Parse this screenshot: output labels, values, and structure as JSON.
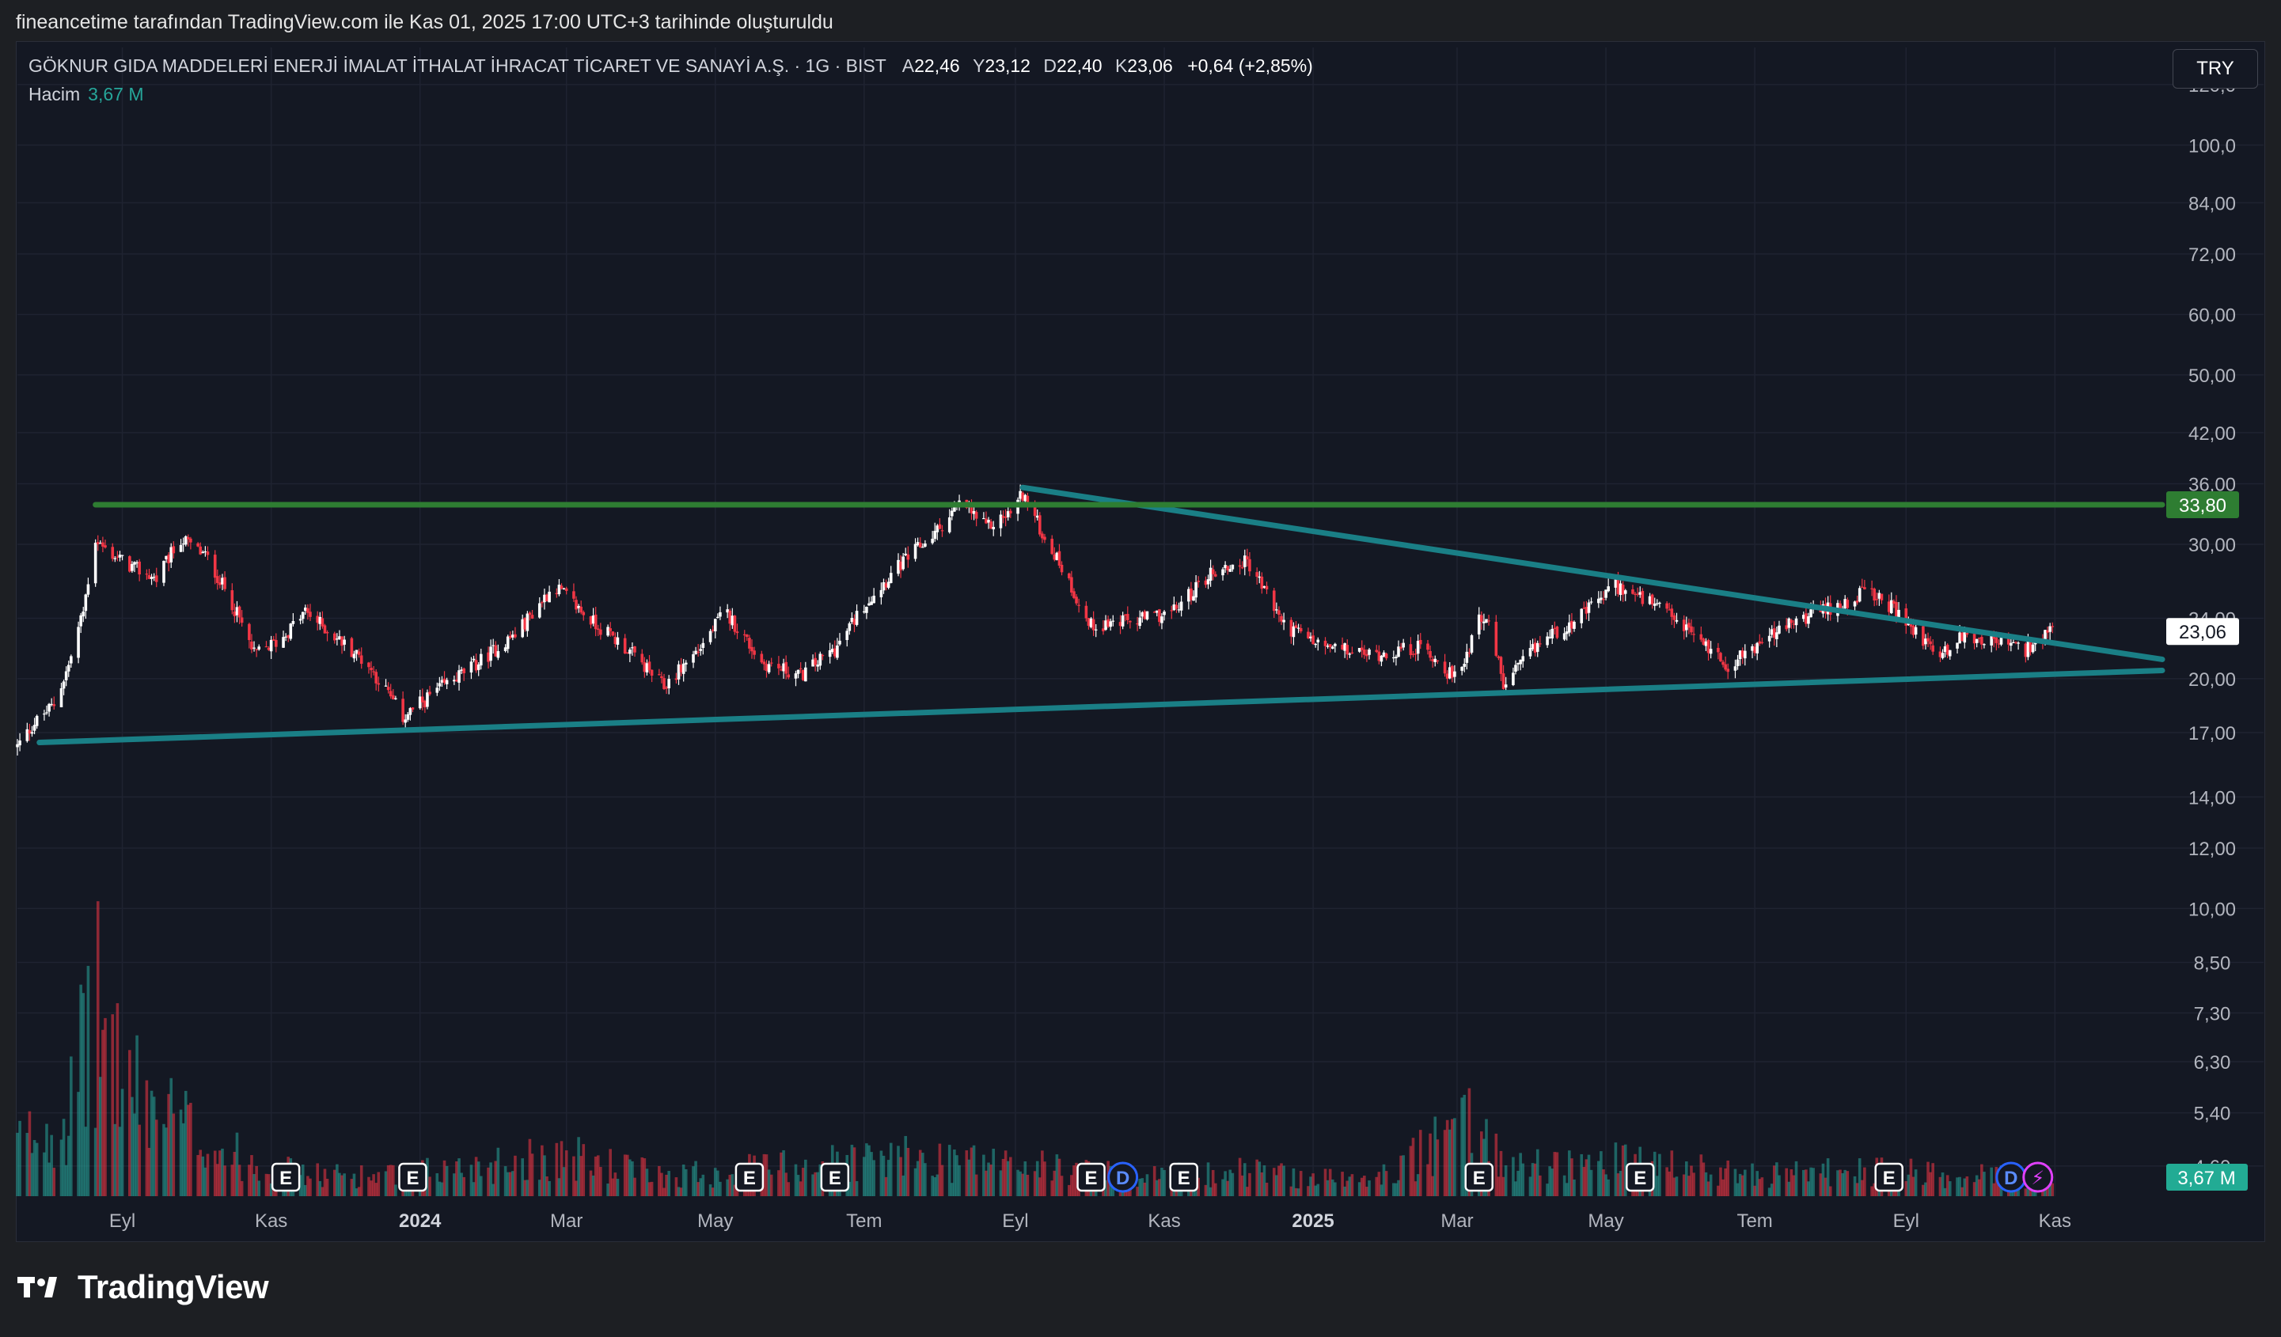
{
  "header": {
    "caption": "fineancetime tarafından TradingView.com ile Kas 01, 2025 17:00 UTC+3 tarihinde oluşturuldu"
  },
  "legend": {
    "symbol": "GÖKNUR GIDA MADDELERİ ENERJİ İMALAT İTHALAT İHRACAT TİCARET VE SANAYİ A.Ş. · 1G · BIST",
    "open_label": "A",
    "open": "22,46",
    "high_label": "Y",
    "high": "23,12",
    "low_label": "D",
    "low": "22,40",
    "close_label": "K",
    "close": "23,06",
    "change": "+0,64 (+2,85%)",
    "volume_name": "Hacim",
    "volume_value": "3,67 M"
  },
  "currency": "TRY",
  "brand": "TradingView",
  "colors": {
    "background": "#141823",
    "up": "#ffffff",
    "down": "#f23645",
    "volume_up": "#26a69a",
    "volume_down": "#f23645",
    "trendline": "#1a7f86",
    "resistance": "#2e7d32",
    "price_tag": "#ffffff",
    "volume_tag": "#22ab94"
  },
  "chart_data": {
    "type": "candlestick",
    "y_scale": "log",
    "ylim": [
      4.2,
      122
    ],
    "y_ticks": [
      {
        "value": 120,
        "label": "120,0"
      },
      {
        "value": 100,
        "label": "100,0"
      },
      {
        "value": 84,
        "label": "84,00"
      },
      {
        "value": 72,
        "label": "72,00"
      },
      {
        "value": 60,
        "label": "60,00"
      },
      {
        "value": 50,
        "label": "50,00"
      },
      {
        "value": 42,
        "label": "42,00"
      },
      {
        "value": 36,
        "label": "36,00"
      },
      {
        "value": 30,
        "label": "30,00"
      },
      {
        "value": 24,
        "label": "24,00"
      },
      {
        "value": 20,
        "label": "20,00"
      },
      {
        "value": 17,
        "label": "17,00"
      },
      {
        "value": 14,
        "label": "14,00"
      },
      {
        "value": 12,
        "label": "12,00"
      },
      {
        "value": 10,
        "label": "10,00"
      },
      {
        "value": 8.5,
        "label": "8,50"
      },
      {
        "value": 7.3,
        "label": "7,30"
      },
      {
        "value": 6.3,
        "label": "6,30"
      },
      {
        "value": 5.4,
        "label": "5,40"
      },
      {
        "value": 4.6,
        "label": "4,60"
      }
    ],
    "x_range": [
      "2023-07-20",
      "2025-12-15"
    ],
    "x_ticks": [
      {
        "date": "2023-09-01",
        "label": "Eyl",
        "bold": false
      },
      {
        "date": "2023-11-01",
        "label": "Kas",
        "bold": false
      },
      {
        "date": "2024-01-01",
        "label": "2024",
        "bold": true
      },
      {
        "date": "2024-03-01",
        "label": "Mar",
        "bold": false
      },
      {
        "date": "2024-05-01",
        "label": "May",
        "bold": false
      },
      {
        "date": "2024-07-01",
        "label": "Tem",
        "bold": false
      },
      {
        "date": "2024-09-01",
        "label": "Eyl",
        "bold": false
      },
      {
        "date": "2024-11-01",
        "label": "Kas",
        "bold": false
      },
      {
        "date": "2025-01-01",
        "label": "2025",
        "bold": true
      },
      {
        "date": "2025-03-01",
        "label": "Mar",
        "bold": false
      },
      {
        "date": "2025-05-01",
        "label": "May",
        "bold": false
      },
      {
        "date": "2025-07-01",
        "label": "Tem",
        "bold": false
      },
      {
        "date": "2025-09-01",
        "label": "Eyl",
        "bold": false
      },
      {
        "date": "2025-11-01",
        "label": "Kas",
        "bold": false
      }
    ],
    "price_path": [
      [
        "2023-07-20",
        16.3
      ],
      [
        "2023-07-27",
        17.5
      ],
      [
        "2023-08-04",
        18.5
      ],
      [
        "2023-08-10",
        20.8
      ],
      [
        "2023-08-16",
        24.5
      ],
      [
        "2023-08-21",
        30.5
      ],
      [
        "2023-08-25",
        29.5
      ],
      [
        "2023-09-05",
        28.0
      ],
      [
        "2023-09-15",
        27.0
      ],
      [
        "2023-09-25",
        30.5
      ],
      [
        "2023-10-05",
        29.0
      ],
      [
        "2023-10-15",
        25.5
      ],
      [
        "2023-10-25",
        21.5
      ],
      [
        "2023-11-05",
        22.5
      ],
      [
        "2023-11-15",
        24.5
      ],
      [
        "2023-11-25",
        23.0
      ],
      [
        "2023-12-10",
        21.0
      ],
      [
        "2023-12-25",
        17.8
      ],
      [
        "2024-01-10",
        19.5
      ],
      [
        "2024-01-25",
        21.0
      ],
      [
        "2024-02-10",
        23.0
      ],
      [
        "2024-02-25",
        26.5
      ],
      [
        "2024-03-10",
        24.0
      ],
      [
        "2024-03-25",
        22.0
      ],
      [
        "2024-04-10",
        19.5
      ],
      [
        "2024-04-25",
        22.0
      ],
      [
        "2024-05-05",
        24.5
      ],
      [
        "2024-05-20",
        21.0
      ],
      [
        "2024-06-05",
        20.2
      ],
      [
        "2024-06-20",
        22.0
      ],
      [
        "2024-07-01",
        25.0
      ],
      [
        "2024-07-15",
        28.0
      ],
      [
        "2024-07-30",
        31.0
      ],
      [
        "2024-08-10",
        34.0
      ],
      [
        "2024-08-20",
        31.5
      ],
      [
        "2024-08-30",
        33.0
      ],
      [
        "2024-09-04",
        35.0
      ],
      [
        "2024-09-12",
        31.0
      ],
      [
        "2024-09-20",
        28.0
      ],
      [
        "2024-10-01",
        23.5
      ],
      [
        "2024-10-20",
        23.8
      ],
      [
        "2024-11-05",
        24.5
      ],
      [
        "2024-11-20",
        27.5
      ],
      [
        "2024-12-05",
        28.5
      ],
      [
        "2024-12-20",
        23.5
      ],
      [
        "2025-01-05",
        22.0
      ],
      [
        "2025-01-25",
        21.5
      ],
      [
        "2025-02-15",
        22.0
      ],
      [
        "2025-02-28",
        20.0
      ],
      [
        "2025-03-05",
        21.5
      ],
      [
        "2025-03-10",
        24.5
      ],
      [
        "2025-03-15",
        23.0
      ],
      [
        "2025-03-20",
        19.5
      ],
      [
        "2025-04-05",
        22.5
      ],
      [
        "2025-04-20",
        24.0
      ],
      [
        "2025-05-05",
        26.5
      ],
      [
        "2025-05-20",
        25.0
      ],
      [
        "2025-06-05",
        23.0
      ],
      [
        "2025-06-20",
        20.8
      ],
      [
        "2025-07-05",
        22.5
      ],
      [
        "2025-07-20",
        24.0
      ],
      [
        "2025-08-05",
        25.0
      ],
      [
        "2025-08-15",
        26.0
      ],
      [
        "2025-08-25",
        25.0
      ],
      [
        "2025-09-05",
        23.0
      ],
      [
        "2025-09-15",
        21.5
      ],
      [
        "2025-09-25",
        22.8
      ],
      [
        "2025-10-10",
        22.3
      ],
      [
        "2025-10-20",
        21.8
      ],
      [
        "2025-10-31",
        23.06
      ]
    ],
    "volume_ylim": [
      0,
      10
    ],
    "volume_unit": "M",
    "volume_profile": [
      [
        "2023-07-20",
        2.5
      ],
      [
        "2023-08-10",
        4.0
      ],
      [
        "2023-08-21",
        9.0
      ],
      [
        "2023-09-05",
        5.0
      ],
      [
        "2023-09-25",
        3.5
      ],
      [
        "2023-10-15",
        2.0
      ],
      [
        "2023-11-15",
        1.0
      ],
      [
        "2023-12-25",
        1.0
      ],
      [
        "2024-02-25",
        2.0
      ],
      [
        "2024-04-10",
        1.0
      ],
      [
        "2024-05-05",
        1.2
      ],
      [
        "2024-07-01",
        1.8
      ],
      [
        "2024-08-10",
        1.8
      ],
      [
        "2024-09-04",
        1.5
      ],
      [
        "2024-10-20",
        0.9
      ],
      [
        "2024-12-05",
        1.2
      ],
      [
        "2025-01-25",
        0.7
      ],
      [
        "2025-03-10",
        3.5
      ],
      [
        "2025-03-20",
        1.5
      ],
      [
        "2025-05-05",
        1.6
      ],
      [
        "2025-07-05",
        1.0
      ],
      [
        "2025-08-15",
        1.2
      ],
      [
        "2025-09-25",
        1.0
      ],
      [
        "2025-10-31",
        0.8
      ]
    ],
    "trendlines": [
      {
        "name": "Lower support",
        "color": "#1a7f86",
        "from": [
          "2023-07-29",
          16.5
        ],
        "to": [
          "2025-12-15",
          20.5
        ]
      },
      {
        "name": "Upper resistance",
        "color": "#1a7f86",
        "from": [
          "2024-09-04",
          35.6
        ],
        "to": [
          "2025-12-15",
          21.2
        ]
      },
      {
        "name": "Horizontal",
        "color": "#2e7d32",
        "from": [
          "2023-08-21",
          33.8
        ],
        "to": [
          "2025-12-15",
          33.8
        ]
      }
    ],
    "price_labels": [
      {
        "value": 33.8,
        "text": "33,80",
        "bg": "#2e7d32",
        "fg": "#ffffff"
      },
      {
        "value": 23.06,
        "text": "23,06",
        "bg": "#ffffff",
        "fg": "#131722"
      }
    ],
    "volume_label": {
      "text": "3,67 M",
      "bg": "#22ab94",
      "fg": "#ffffff"
    },
    "event_markers": [
      {
        "date": "2023-11-07",
        "type": "E"
      },
      {
        "date": "2023-12-29",
        "type": "E"
      },
      {
        "date": "2024-05-15",
        "type": "E"
      },
      {
        "date": "2024-06-19",
        "type": "E"
      },
      {
        "date": "2024-10-02",
        "type": "E"
      },
      {
        "date": "2024-10-15",
        "type": "D"
      },
      {
        "date": "2024-11-09",
        "type": "E"
      },
      {
        "date": "2025-03-10",
        "type": "E"
      },
      {
        "date": "2025-05-15",
        "type": "E"
      },
      {
        "date": "2025-08-25",
        "type": "E"
      },
      {
        "date": "2025-10-14",
        "type": "D"
      },
      {
        "date": "2025-10-25",
        "type": "⚡"
      }
    ]
  }
}
